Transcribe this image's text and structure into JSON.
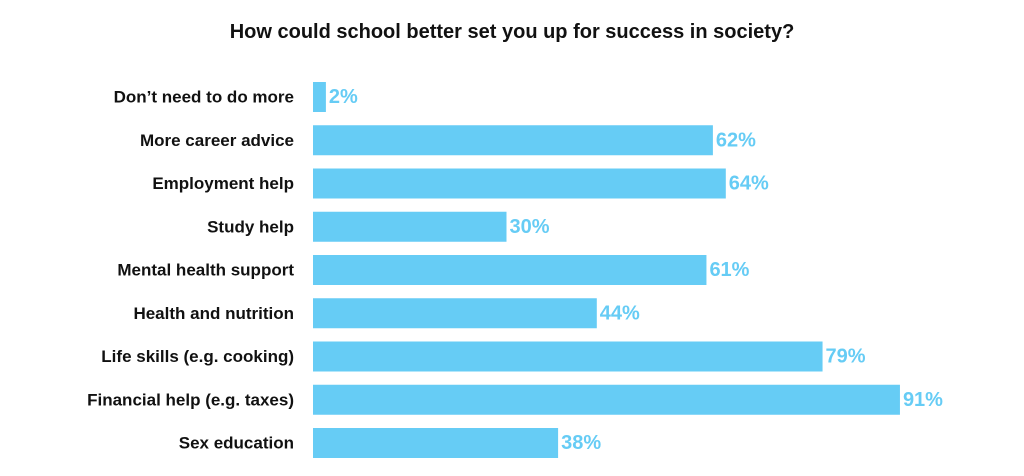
{
  "chart_data": {
    "type": "bar",
    "orientation": "horizontal",
    "title": "How could school better set you up for success in society?",
    "categories": [
      "Don’t need to do more",
      "More career advice",
      "Employment help",
      "Study help",
      "Mental health support",
      "Health and nutrition",
      "Life skills (e.g. cooking)",
      "Financial help (e.g. taxes)",
      "Sex education"
    ],
    "values": [
      2,
      62,
      64,
      30,
      61,
      44,
      79,
      91,
      38
    ],
    "value_labels": [
      "2%",
      "62%",
      "64%",
      "30%",
      "61%",
      "44%",
      "79%",
      "91%",
      "38%"
    ],
    "xlim": [
      0,
      100
    ],
    "grid": false,
    "legend": "none",
    "bar_color": "#66CCF5",
    "label_color": "#66CCF5"
  }
}
